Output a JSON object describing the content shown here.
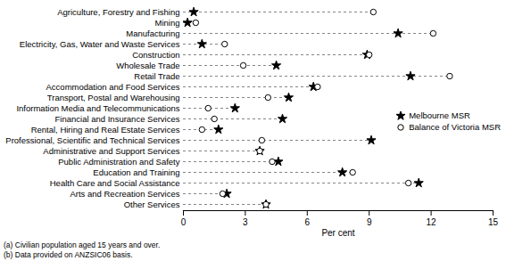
{
  "chart_data": {
    "type": "dot",
    "orientation": "horizontal",
    "categories": [
      "Agriculture, Forestry and Fishing",
      "Mining",
      "Manufacturing",
      "Electricity, Gas, Water and Waste Services",
      "Construction",
      "Wholesale Trade",
      "Retail Trade",
      "Accommodation and Food Services",
      "Transport, Postal and Warehousing",
      "Information Media and Telecommunications",
      "Financial and Insurance Services",
      "Rental, Hiring and Real Estate Services",
      "Professional, Scientific and Technical Services",
      "Administrative and Support Services",
      "Public Administration and Safety",
      "Education and Training",
      "Health Care and Social Assistance",
      "Arts and Recreation Services",
      "Other Services"
    ],
    "series": [
      {
        "name": "Melbourne MSR",
        "color": "#000000",
        "marker": "star",
        "values": [
          0.5,
          0.2,
          10.4,
          0.9,
          8.9,
          4.5,
          11.0,
          6.3,
          5.1,
          2.5,
          4.8,
          1.7,
          9.1,
          3.7,
          4.6,
          7.7,
          11.4,
          2.1,
          4.0
        ]
      },
      {
        "name": "Balance of Victoria MSR",
        "color": "#ffffff",
        "marker": "circle",
        "values": [
          9.2,
          0.6,
          12.1,
          2.0,
          9.0,
          2.9,
          12.9,
          6.5,
          4.1,
          1.2,
          1.5,
          0.9,
          3.8,
          3.7,
          4.3,
          8.2,
          10.9,
          1.9,
          4.0
        ]
      }
    ],
    "x_label": "Per cent",
    "xlim": [
      0,
      15
    ],
    "xticks": [
      0,
      3,
      6,
      9,
      12,
      15
    ],
    "legend": "right",
    "grid": false,
    "footnotes": [
      "(a) Civilian population aged 15 years and over.",
      "(b) Data provided on ANZSIC06 basis."
    ]
  }
}
